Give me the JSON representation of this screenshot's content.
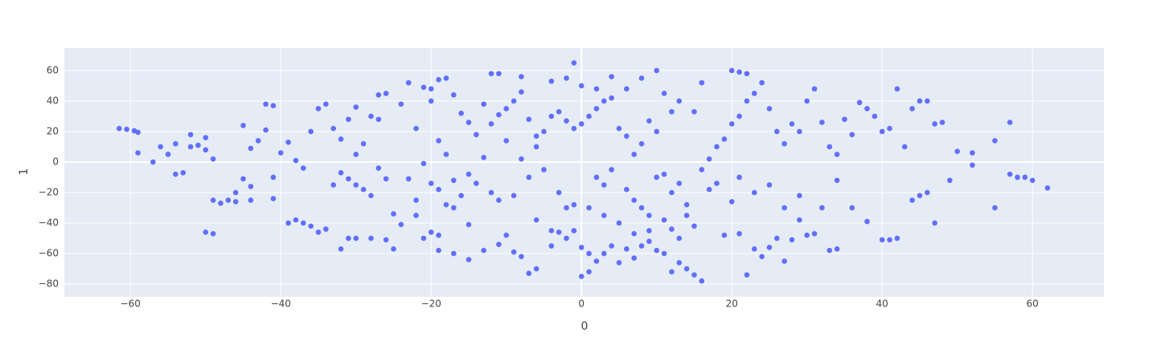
{
  "chart_data": {
    "type": "scatter",
    "xlabel": "0",
    "ylabel": "1",
    "color": "#636efa",
    "grid": true,
    "xlim": [
      -68.8,
      69.5
    ],
    "ylim": [
      -88.4,
      74.7
    ],
    "xticks": [
      {
        "value": -60,
        "label": "−60"
      },
      {
        "value": -40,
        "label": "−40"
      },
      {
        "value": -20,
        "label": "−20"
      },
      0,
      20,
      40,
      60
    ],
    "yticks": [
      {
        "value": -80,
        "label": "−80"
      },
      {
        "value": -60,
        "label": "−60"
      },
      {
        "value": -40,
        "label": "−40"
      },
      {
        "value": -20,
        "label": "−20"
      },
      0,
      20,
      40,
      60
    ],
    "x": [
      -61.5,
      -60.5,
      -59.5,
      -59,
      -59,
      -57,
      -56,
      -55,
      -54,
      -54,
      -53,
      -52,
      -52,
      -51,
      -50,
      -50,
      -49,
      -50,
      -49,
      -49,
      -48,
      -47,
      -46,
      -45,
      -44,
      -45,
      -44,
      -43,
      -42,
      -41,
      -42,
      -41,
      -40,
      -39,
      -38,
      -37,
      -41,
      -39,
      -38,
      -37,
      -36,
      -35,
      -34,
      -36,
      -35,
      -34,
      -33,
      -32,
      -31,
      -30,
      -29,
      -28,
      -30,
      -30,
      -28,
      -27,
      -28,
      -26,
      -25,
      -27,
      -26,
      -24,
      -22,
      -23,
      -21,
      -20,
      -19,
      -18,
      -21,
      -20,
      -22,
      -20,
      -19,
      -17,
      -15,
      -13,
      -23,
      -22,
      -21,
      -25,
      -24,
      -19,
      -17,
      -16,
      -15,
      -14,
      -12,
      -13,
      -14,
      -12,
      -11,
      -10,
      -9,
      -8,
      -7,
      -6,
      -5,
      -4,
      -3,
      -2,
      -1,
      0,
      1,
      2,
      3,
      4,
      5,
      6,
      -12,
      -11,
      -8,
      -4,
      -2,
      -1,
      0,
      2,
      4,
      6,
      8,
      10,
      11,
      13,
      15,
      -15,
      -10,
      -11,
      -9,
      -8,
      -7,
      -6,
      -4,
      -3,
      -2,
      0,
      1,
      0,
      1,
      2,
      3,
      4,
      5,
      6,
      7,
      8,
      9,
      10,
      11,
      12,
      13,
      14,
      15,
      16,
      13,
      -9,
      -7,
      -5,
      -3,
      -1,
      1,
      2,
      3,
      4,
      6,
      7,
      8,
      9,
      10,
      11,
      12,
      13,
      14,
      15,
      16,
      17,
      18,
      19,
      20,
      21,
      22,
      23,
      24,
      25,
      26,
      27,
      28,
      29,
      30,
      31,
      32,
      33,
      34,
      35,
      36,
      37,
      38,
      39,
      40,
      41,
      42,
      43,
      44,
      45,
      46,
      47,
      48,
      49,
      50,
      52,
      55,
      57,
      57,
      58,
      59,
      60,
      62,
      55,
      52,
      40,
      41,
      42,
      44,
      46,
      47,
      45,
      38,
      36,
      34,
      32,
      31,
      30,
      29,
      28,
      27,
      26,
      25,
      24,
      23,
      22,
      21,
      20,
      19,
      18,
      17,
      21,
      23,
      25,
      27,
      29,
      33,
      34,
      22,
      21,
      20,
      16,
      9,
      8,
      7,
      10,
      12,
      -6,
      -8,
      -10,
      -11,
      -6,
      -4,
      -2,
      -1,
      3,
      5,
      7,
      9,
      11,
      12,
      14,
      -17,
      -18,
      -19,
      -17,
      -16,
      -15,
      -13,
      -18,
      -19,
      -20,
      -26,
      -27,
      -29,
      -31,
      -32,
      -33,
      -32,
      -31,
      -30,
      -44,
      -46
    ],
    "y": [
      22,
      21.5,
      20.5,
      19.5,
      6,
      0,
      10,
      5,
      12,
      -8,
      -7,
      10,
      18,
      11,
      16,
      8,
      2,
      -46,
      -47,
      -25,
      -27,
      -25,
      -26,
      -11,
      -25,
      24,
      9,
      14,
      38,
      37,
      21,
      -10,
      6,
      13,
      1,
      -4,
      -24,
      -40,
      -38,
      -40,
      -42,
      -46,
      -44,
      20,
      35,
      38,
      22,
      15,
      -11,
      -15,
      -18,
      -22,
      5,
      36,
      30,
      28,
      -50,
      -51,
      -57,
      44,
      45,
      38,
      22,
      52,
      49,
      40,
      14,
      5,
      -1,
      -14,
      -35,
      -46,
      -58,
      -60,
      -64,
      -58,
      -11,
      -25,
      -50,
      -34,
      -41,
      -48,
      -30,
      -22,
      -8,
      -14,
      -20,
      3,
      18,
      25,
      31,
      35,
      40,
      46,
      28,
      17,
      20,
      30,
      33,
      27,
      22,
      25,
      30,
      35,
      40,
      42,
      22,
      17,
      58,
      58,
      56,
      53,
      55,
      65,
      50,
      48,
      56,
      48,
      55,
      60,
      45,
      40,
      33,
      -41,
      -48,
      -54,
      -59,
      -62,
      -73,
      -70,
      -55,
      -46,
      -50,
      -56,
      -60,
      -75,
      -72,
      -65,
      -60,
      -55,
      -66,
      -57,
      -63,
      -55,
      -52,
      -58,
      -60,
      -72,
      -66,
      -70,
      -74,
      -78,
      -50,
      -22,
      -10,
      -5,
      -20,
      -28,
      -30,
      -10,
      -15,
      -5,
      -18,
      -25,
      -30,
      -35,
      -10,
      -8,
      -20,
      -14,
      -35,
      -42,
      -5,
      2,
      10,
      15,
      25,
      30,
      40,
      45,
      52,
      35,
      20,
      12,
      25,
      20,
      40,
      48,
      26,
      10,
      5,
      28,
      18,
      39,
      35,
      30,
      20,
      22,
      48,
      10,
      35,
      40,
      40,
      25,
      26,
      -12,
      7,
      6,
      14,
      26,
      -8,
      -10,
      -10,
      -12,
      -17,
      -30,
      -2,
      -51,
      -51,
      -50,
      -25,
      -20,
      -40,
      -22,
      -39,
      -30,
      -12,
      -30,
      -47,
      -48,
      -38,
      -51,
      -65,
      -50,
      -56,
      -62,
      -57,
      -74,
      -47,
      -26,
      -48,
      -14,
      -18,
      -10,
      -20,
      -15,
      -30,
      -22,
      -58,
      -57,
      58,
      59,
      60,
      52,
      27,
      12,
      5,
      20,
      33,
      10,
      2,
      14,
      -25,
      -38,
      -45,
      -30,
      -45,
      -35,
      -40,
      -47,
      -45,
      -38,
      -44,
      -28,
      -12,
      -28,
      -18,
      44,
      32,
      26,
      38,
      55,
      54,
      48,
      -11,
      -4,
      12,
      28,
      -7,
      -15,
      -57,
      -50,
      -50,
      -16,
      -20
    ]
  }
}
